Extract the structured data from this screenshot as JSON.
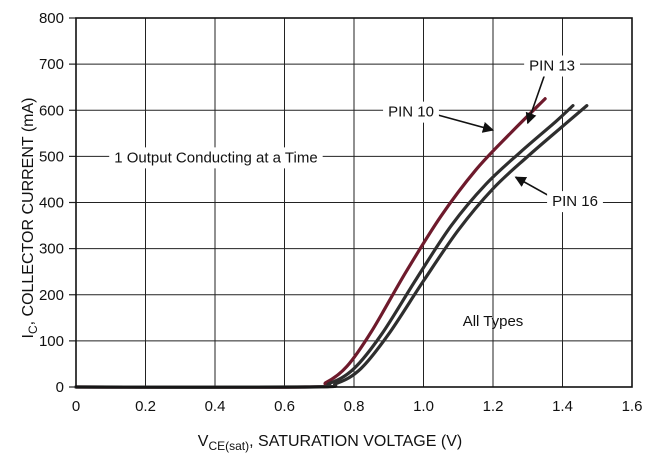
{
  "chart_data": {
    "type": "line",
    "title": "",
    "xlabel": {
      "main": "V",
      "sub": "CE(sat)",
      "rest": ", SATURATION VOLTAGE (V)"
    },
    "ylabel": {
      "main": "I",
      "sub": "C",
      "rest": ", COLLECTOR CURRENT (mA)"
    },
    "xlim": [
      0,
      1.6
    ],
    "ylim": [
      0,
      800
    ],
    "x_ticks": [
      "0",
      "0.2",
      "0.4",
      "0.6",
      "0.8",
      "1.0",
      "1.2",
      "1.4",
      "1.6"
    ],
    "y_ticks": [
      "0",
      "100",
      "200",
      "300",
      "400",
      "500",
      "600",
      "700",
      "800"
    ],
    "grid": true,
    "series": [
      {
        "name": "PIN 10",
        "color": "#6e1a2c",
        "x": [
          0,
          0.66,
          0.72,
          0.78,
          0.85,
          0.95,
          1.05,
          1.15,
          1.25,
          1.35
        ],
        "y": [
          0,
          0,
          10,
          45,
          120,
          250,
          370,
          470,
          550,
          625
        ]
      },
      {
        "name": "PIN 13",
        "color": "#2e2e2e",
        "x": [
          0,
          0.66,
          0.73,
          0.8,
          0.88,
          0.98,
          1.08,
          1.18,
          1.28,
          1.38,
          1.43
        ],
        "y": [
          0,
          0,
          8,
          40,
          115,
          235,
          350,
          440,
          510,
          575,
          610
        ]
      },
      {
        "name": "PIN 16",
        "color": "#2e2e2e",
        "x": [
          0,
          0.67,
          0.75,
          0.82,
          0.9,
          1.0,
          1.1,
          1.2,
          1.3,
          1.4,
          1.47
        ],
        "y": [
          0,
          0,
          8,
          40,
          115,
          230,
          340,
          430,
          500,
          565,
          610
        ]
      }
    ],
    "annotations": [
      {
        "text": "1 Output Conducting at a Time"
      },
      {
        "text": "PIN 10",
        "points_to": "PIN 10"
      },
      {
        "text": "PIN 13",
        "points_to": "PIN 13"
      },
      {
        "text": "PIN 16",
        "points_to": "PIN 16"
      },
      {
        "text": "All Types"
      }
    ]
  }
}
